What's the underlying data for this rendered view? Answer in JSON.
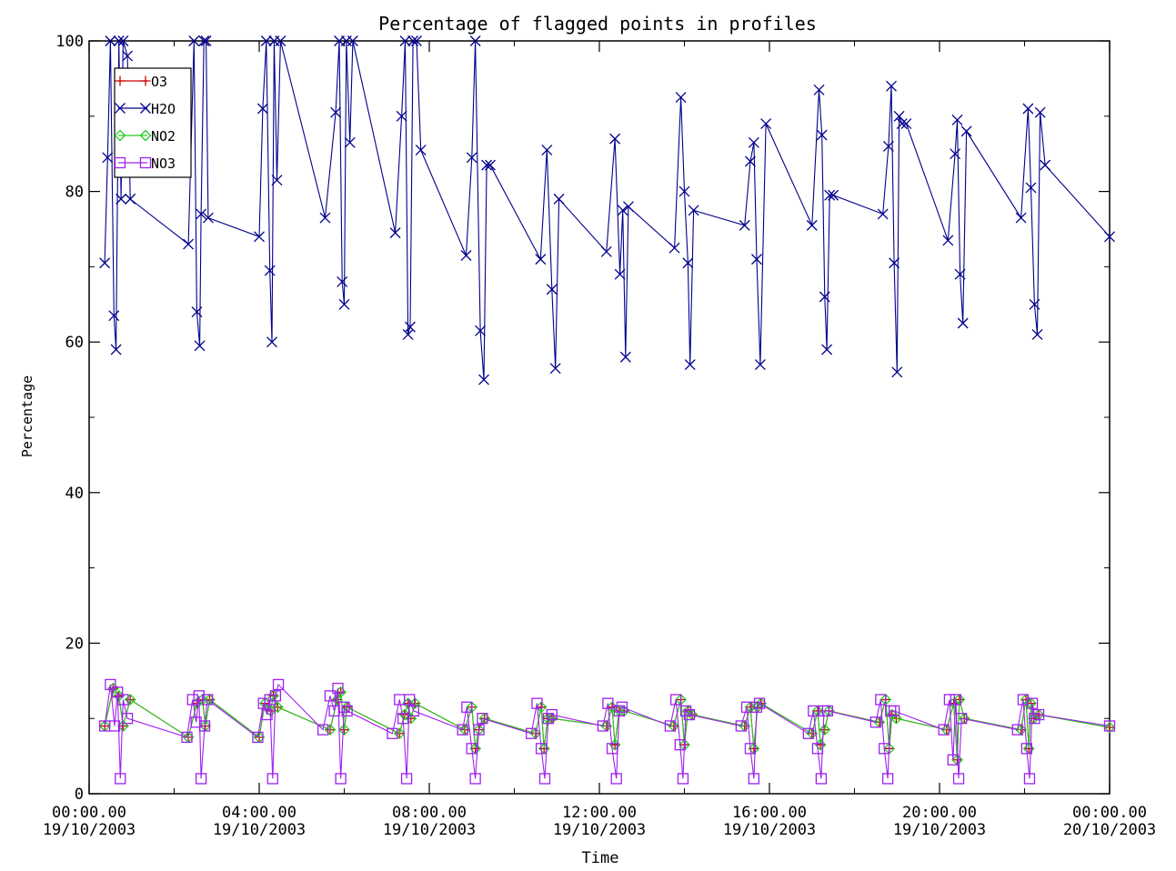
{
  "chart_data": {
    "type": "line",
    "title": "Percentage of flagged points in profiles",
    "xlabel": "Time",
    "ylabel": "Percentage",
    "xlim": [
      "2003-10-19 00:00",
      "2003-10-20 00:00"
    ],
    "ylim": [
      0,
      100
    ],
    "yticks": [
      "0",
      "20",
      "40",
      "60",
      "80",
      "100"
    ],
    "xticks": [
      {
        "time": "00:00.00",
        "date": "19/10/2003"
      },
      {
        "time": "04:00.00",
        "date": "19/10/2003"
      },
      {
        "time": "08:00.00",
        "date": "19/10/2003"
      },
      {
        "time": "12:00.00",
        "date": "19/10/2003"
      },
      {
        "time": "16:00.00",
        "date": "19/10/2003"
      },
      {
        "time": "20:00.00",
        "date": "19/10/2003"
      },
      {
        "time": "00:00.00",
        "date": "20/10/2003"
      }
    ],
    "legend_position": "top-left",
    "grid": false,
    "series": [
      {
        "name": "O3",
        "color": "#cc0000",
        "marker": "plus",
        "x": [
          "2003-10-19 00:22",
          "2003-10-19 00:34",
          "2003-10-19 00:42",
          "2003-10-19 00:48",
          "2003-10-19 00:58",
          "2003-10-19 02:20",
          "2003-10-19 02:32",
          "2003-10-19 02:40",
          "2003-10-19 02:44",
          "2003-10-19 02:50",
          "2003-10-19 04:00",
          "2003-10-19 04:08",
          "2003-10-19 04:16",
          "2003-10-19 04:20",
          "2003-10-19 04:26",
          "2003-10-19 05:40",
          "2003-10-19 05:50",
          "2003-10-19 05:55",
          "2003-10-19 06:00",
          "2003-10-19 06:04",
          "2003-10-19 07:18",
          "2003-10-19 07:25",
          "2003-10-19 07:30",
          "2003-10-19 07:34",
          "2003-10-19 07:40",
          "2003-10-19 08:50",
          "2003-10-19 09:00",
          "2003-10-19 09:05",
          "2003-10-19 09:10",
          "2003-10-19 09:18",
          "2003-10-19 10:30",
          "2003-10-19 10:38",
          "2003-10-19 10:42",
          "2003-10-19 10:47",
          "2003-10-19 10:53",
          "2003-10-19 12:10",
          "2003-10-19 12:18",
          "2003-10-19 12:22",
          "2003-10-19 12:28",
          "2003-10-19 12:35",
          "2003-10-19 13:45",
          "2003-10-19 13:55",
          "2003-10-19 14:00",
          "2003-10-19 14:05",
          "2003-10-19 14:11",
          "2003-10-19 15:25",
          "2003-10-19 15:33",
          "2003-10-19 15:38",
          "2003-10-19 15:43",
          "2003-10-19 15:48",
          "2003-10-19 17:00",
          "2003-10-19 17:08",
          "2003-10-19 17:12",
          "2003-10-19 17:18",
          "2003-10-19 17:24",
          "2003-10-19 18:35",
          "2003-10-19 18:44",
          "2003-10-19 18:49",
          "2003-10-19 18:53",
          "2003-10-19 18:59",
          "2003-10-19 20:10",
          "2003-10-19 20:20",
          "2003-10-19 20:25",
          "2003-10-19 20:28",
          "2003-10-19 20:35",
          "2003-10-19 21:55",
          "2003-10-19 22:02",
          "2003-10-19 22:06",
          "2003-10-19 22:09",
          "2003-10-19 22:13",
          "2003-10-19 22:20",
          "2003-10-20 00:00"
        ],
        "y": [
          9,
          14,
          13,
          9,
          12.5,
          7.5,
          12,
          12.5,
          9,
          12.5,
          7.5,
          12,
          11,
          13,
          11.5,
          8.5,
          12.5,
          13.5,
          8.5,
          11.5,
          8,
          10.5,
          12,
          10,
          12,
          8.5,
          11.5,
          6,
          8.5,
          10,
          8,
          11.5,
          6,
          10,
          10,
          9,
          11.5,
          6.5,
          11,
          11,
          9,
          12.5,
          6.5,
          11,
          10.5,
          9,
          11.5,
          6,
          11.5,
          12,
          8,
          11,
          6.5,
          8.5,
          11,
          9.5,
          12.5,
          6,
          10.5,
          10,
          8.5,
          12,
          4.5,
          12.5,
          10,
          8.5,
          12.5,
          6,
          12,
          10,
          10.5,
          8.8
        ]
      },
      {
        "name": "H2O",
        "color": "#00008b",
        "marker": "x",
        "x": [
          "2003-10-19 00:22",
          "2003-10-19 00:26",
          "2003-10-19 00:30",
          "2003-10-19 00:35",
          "2003-10-19 00:38",
          "2003-10-19 00:42",
          "2003-10-19 00:45",
          "2003-10-19 00:48",
          "2003-10-19 00:54",
          "2003-10-19 00:58",
          "2003-10-19 02:20",
          "2003-10-19 02:28",
          "2003-10-19 02:32",
          "2003-10-19 02:36",
          "2003-10-19 02:38",
          "2003-10-19 02:42",
          "2003-10-19 02:45",
          "2003-10-19 02:48",
          "2003-10-19 04:00",
          "2003-10-19 04:05",
          "2003-10-19 04:10",
          "2003-10-19 04:15",
          "2003-10-19 04:18",
          "2003-10-19 04:21",
          "2003-10-19 04:25",
          "2003-10-19 04:30",
          "2003-10-19 05:33",
          "2003-10-19 05:48",
          "2003-10-19 05:53",
          "2003-10-19 05:57",
          "2003-10-19 06:00",
          "2003-10-19 06:03",
          "2003-10-19 06:08",
          "2003-10-19 06:12",
          "2003-10-19 07:12",
          "2003-10-19 07:21",
          "2003-10-19 07:26",
          "2003-10-19 07:30",
          "2003-10-19 07:33",
          "2003-10-19 07:37",
          "2003-10-19 07:42",
          "2003-10-19 07:48",
          "2003-10-19 08:52",
          "2003-10-19 09:00",
          "2003-10-19 09:05",
          "2003-10-19 09:12",
          "2003-10-19 09:17",
          "2003-10-19 09:21",
          "2003-10-19 09:26",
          "2003-10-19 10:37",
          "2003-10-19 10:46",
          "2003-10-19 10:53",
          "2003-10-19 10:58",
          "2003-10-19 11:03",
          "2003-10-19 12:10",
          "2003-10-19 12:22",
          "2003-10-19 12:29",
          "2003-10-19 12:33",
          "2003-10-19 12:37",
          "2003-10-19 12:41",
          "2003-10-19 13:46",
          "2003-10-19 13:55",
          "2003-10-19 14:00",
          "2003-10-19 14:05",
          "2003-10-19 14:08",
          "2003-10-19 14:13",
          "2003-10-19 15:25",
          "2003-10-19 15:33",
          "2003-10-19 15:38",
          "2003-10-19 15:42",
          "2003-10-19 15:47",
          "2003-10-19 15:55",
          "2003-10-19 17:00",
          "2003-10-19 17:10",
          "2003-10-19 17:14",
          "2003-10-19 17:18",
          "2003-10-19 17:21",
          "2003-10-19 17:25",
          "2003-10-19 17:30",
          "2003-10-19 18:40",
          "2003-10-19 18:48",
          "2003-10-19 18:52",
          "2003-10-19 18:56",
          "2003-10-19 19:00",
          "2003-10-19 19:03",
          "2003-10-19 19:07",
          "2003-10-19 19:13",
          "2003-10-19 20:12",
          "2003-10-19 20:22",
          "2003-10-19 20:25",
          "2003-10-19 20:29",
          "2003-10-19 20:33",
          "2003-10-19 20:38",
          "2003-10-19 21:55",
          "2003-10-19 22:05",
          "2003-10-19 22:09",
          "2003-10-19 22:14",
          "2003-10-19 22:18",
          "2003-10-19 22:22",
          "2003-10-19 22:29",
          "2003-10-20 00:00"
        ],
        "y": [
          70.5,
          84.5,
          100,
          63.5,
          59,
          100,
          79,
          100,
          98,
          79,
          73,
          100,
          64,
          59.5,
          77,
          100,
          100,
          76.5,
          74,
          91,
          100,
          69.5,
          60,
          100,
          81.5,
          100,
          76.5,
          90.5,
          100,
          68,
          65,
          100,
          86.5,
          100,
          74.5,
          90,
          100,
          61,
          62,
          100,
          100,
          85.5,
          71.5,
          84.5,
          100,
          61.5,
          55,
          83.5,
          83.5,
          71,
          85.5,
          67,
          56.5,
          79,
          72,
          87,
          69,
          77.5,
          58,
          78,
          72.5,
          92.5,
          80,
          70.5,
          57,
          77.5,
          75.5,
          84,
          86.5,
          71,
          57,
          89,
          75.5,
          93.5,
          87.5,
          66,
          59,
          79.5,
          79.5,
          77,
          86,
          94,
          70.5,
          56,
          90,
          89,
          89,
          73.5,
          85,
          89.5,
          69,
          62.5,
          88,
          76.5,
          91,
          80.5,
          65,
          61,
          90.5,
          83.5,
          74
        ]
      },
      {
        "name": "NO2",
        "color": "#22cc22",
        "marker": "diamond",
        "x": [
          "2003-10-19 00:22",
          "2003-10-19 00:34",
          "2003-10-19 00:42",
          "2003-10-19 00:48",
          "2003-10-19 00:58",
          "2003-10-19 02:20",
          "2003-10-19 02:32",
          "2003-10-19 02:40",
          "2003-10-19 02:44",
          "2003-10-19 02:50",
          "2003-10-19 04:00",
          "2003-10-19 04:08",
          "2003-10-19 04:16",
          "2003-10-19 04:20",
          "2003-10-19 04:26",
          "2003-10-19 05:40",
          "2003-10-19 05:50",
          "2003-10-19 05:55",
          "2003-10-19 06:00",
          "2003-10-19 06:04",
          "2003-10-19 07:18",
          "2003-10-19 07:25",
          "2003-10-19 07:30",
          "2003-10-19 07:34",
          "2003-10-19 07:40",
          "2003-10-19 08:50",
          "2003-10-19 09:00",
          "2003-10-19 09:05",
          "2003-10-19 09:10",
          "2003-10-19 09:18",
          "2003-10-19 10:30",
          "2003-10-19 10:38",
          "2003-10-19 10:42",
          "2003-10-19 10:47",
          "2003-10-19 10:53",
          "2003-10-19 12:10",
          "2003-10-19 12:18",
          "2003-10-19 12:22",
          "2003-10-19 12:28",
          "2003-10-19 12:35",
          "2003-10-19 13:45",
          "2003-10-19 13:55",
          "2003-10-19 14:00",
          "2003-10-19 14:05",
          "2003-10-19 14:11",
          "2003-10-19 15:25",
          "2003-10-19 15:33",
          "2003-10-19 15:38",
          "2003-10-19 15:43",
          "2003-10-19 15:48",
          "2003-10-19 17:00",
          "2003-10-19 17:08",
          "2003-10-19 17:12",
          "2003-10-19 17:18",
          "2003-10-19 17:24",
          "2003-10-19 18:35",
          "2003-10-19 18:44",
          "2003-10-19 18:49",
          "2003-10-19 18:53",
          "2003-10-19 18:59",
          "2003-10-19 20:10",
          "2003-10-19 20:20",
          "2003-10-19 20:25",
          "2003-10-19 20:28",
          "2003-10-19 20:35",
          "2003-10-19 21:55",
          "2003-10-19 22:02",
          "2003-10-19 22:06",
          "2003-10-19 22:09",
          "2003-10-19 22:13",
          "2003-10-19 22:20",
          "2003-10-20 00:00"
        ],
        "y": [
          9,
          14,
          13,
          9,
          12.5,
          7.5,
          12,
          12.5,
          9,
          12.5,
          7.5,
          12,
          11,
          13,
          11.5,
          8.5,
          12.5,
          13.5,
          8.5,
          11.5,
          8,
          10.5,
          12,
          10,
          12,
          8.5,
          11.5,
          6,
          8.5,
          10,
          8,
          11.5,
          6,
          10,
          10,
          9,
          11.5,
          6.5,
          11,
          11,
          9,
          12.5,
          6.5,
          11,
          10.5,
          9,
          11.5,
          6,
          11.5,
          12,
          8,
          11,
          6.5,
          8.5,
          11,
          9.5,
          12.5,
          6,
          10.5,
          10,
          8.5,
          12,
          4.5,
          12.5,
          10,
          8.5,
          12.5,
          6,
          12,
          10,
          10.5,
          8.8
        ]
      },
      {
        "name": "NO3",
        "color": "#a020f0",
        "marker": "square",
        "x": [
          "2003-10-19 00:22",
          "2003-10-19 00:30",
          "2003-10-19 00:36",
          "2003-10-19 00:40",
          "2003-10-19 00:44",
          "2003-10-19 00:48",
          "2003-10-19 00:54",
          "2003-10-19 02:18",
          "2003-10-19 02:26",
          "2003-10-19 02:31",
          "2003-10-19 02:35",
          "2003-10-19 02:38",
          "2003-10-19 02:43",
          "2003-10-19 02:47",
          "2003-10-19 03:58",
          "2003-10-19 04:06",
          "2003-10-19 04:11",
          "2003-10-19 04:15",
          "2003-10-19 04:19",
          "2003-10-19 04:23",
          "2003-10-19 04:27",
          "2003-10-19 05:30",
          "2003-10-19 05:40",
          "2003-10-19 05:46",
          "2003-10-19 05:51",
          "2003-10-19 05:55",
          "2003-10-19 06:00",
          "2003-10-19 06:04",
          "2003-10-19 07:08",
          "2003-10-19 07:18",
          "2003-10-19 07:23",
          "2003-10-19 07:28",
          "2003-10-19 07:32",
          "2003-10-19 07:38",
          "2003-10-19 08:47",
          "2003-10-19 08:53",
          "2003-10-19 09:00",
          "2003-10-19 09:05",
          "2003-10-19 09:10",
          "2003-10-19 09:15",
          "2003-10-19 10:24",
          "2003-10-19 10:32",
          "2003-10-19 10:38",
          "2003-10-19 10:43",
          "2003-10-19 10:48",
          "2003-10-19 10:53",
          "2003-10-19 12:05",
          "2003-10-19 12:12",
          "2003-10-19 12:18",
          "2003-10-19 12:24",
          "2003-10-19 12:28",
          "2003-10-19 12:32",
          "2003-10-19 13:40",
          "2003-10-19 13:48",
          "2003-10-19 13:54",
          "2003-10-19 13:58",
          "2003-10-19 14:02",
          "2003-10-19 14:07",
          "2003-10-19 15:20",
          "2003-10-19 15:28",
          "2003-10-19 15:33",
          "2003-10-19 15:38",
          "2003-10-19 15:42",
          "2003-10-19 15:46",
          "2003-10-19 16:55",
          "2003-10-19 17:02",
          "2003-10-19 17:08",
          "2003-10-19 17:13",
          "2003-10-19 17:17",
          "2003-10-19 17:22",
          "2003-10-19 18:30",
          "2003-10-19 18:37",
          "2003-10-19 18:42",
          "2003-10-19 18:47",
          "2003-10-19 18:51",
          "2003-10-19 18:56",
          "2003-10-19 20:06",
          "2003-10-19 20:14",
          "2003-10-19 20:19",
          "2003-10-19 20:23",
          "2003-10-19 20:27",
          "2003-10-19 20:31",
          "2003-10-19 21:50",
          "2003-10-19 21:58",
          "2003-10-19 22:03",
          "2003-10-19 22:07",
          "2003-10-19 22:11",
          "2003-10-19 22:14",
          "2003-10-19 22:20",
          "2003-10-20 00:00"
        ],
        "y": [
          9,
          14.5,
          9,
          13.5,
          2,
          12.5,
          10,
          7.5,
          12.5,
          9.5,
          13,
          2,
          9,
          12.5,
          7.5,
          12,
          10.5,
          12.5,
          2,
          13,
          14.5,
          8.5,
          13,
          11,
          14,
          2,
          11.5,
          11,
          8,
          12.5,
          10,
          2,
          12.5,
          11,
          8.5,
          11.5,
          6,
          2,
          8.5,
          10,
          8,
          12,
          6,
          2,
          10,
          10.5,
          9,
          12,
          6,
          2,
          11,
          11.5,
          9,
          12.5,
          6.5,
          2,
          11,
          10.5,
          9,
          11.5,
          6,
          2,
          11.5,
          12,
          8,
          11,
          6,
          2,
          11,
          11,
          9.5,
          12.5,
          6,
          2,
          11,
          11,
          8.5,
          12.5,
          4.5,
          12.5,
          2,
          10,
          8.5,
          12.5,
          6,
          2,
          12,
          10,
          10.5,
          9
        ]
      }
    ]
  }
}
